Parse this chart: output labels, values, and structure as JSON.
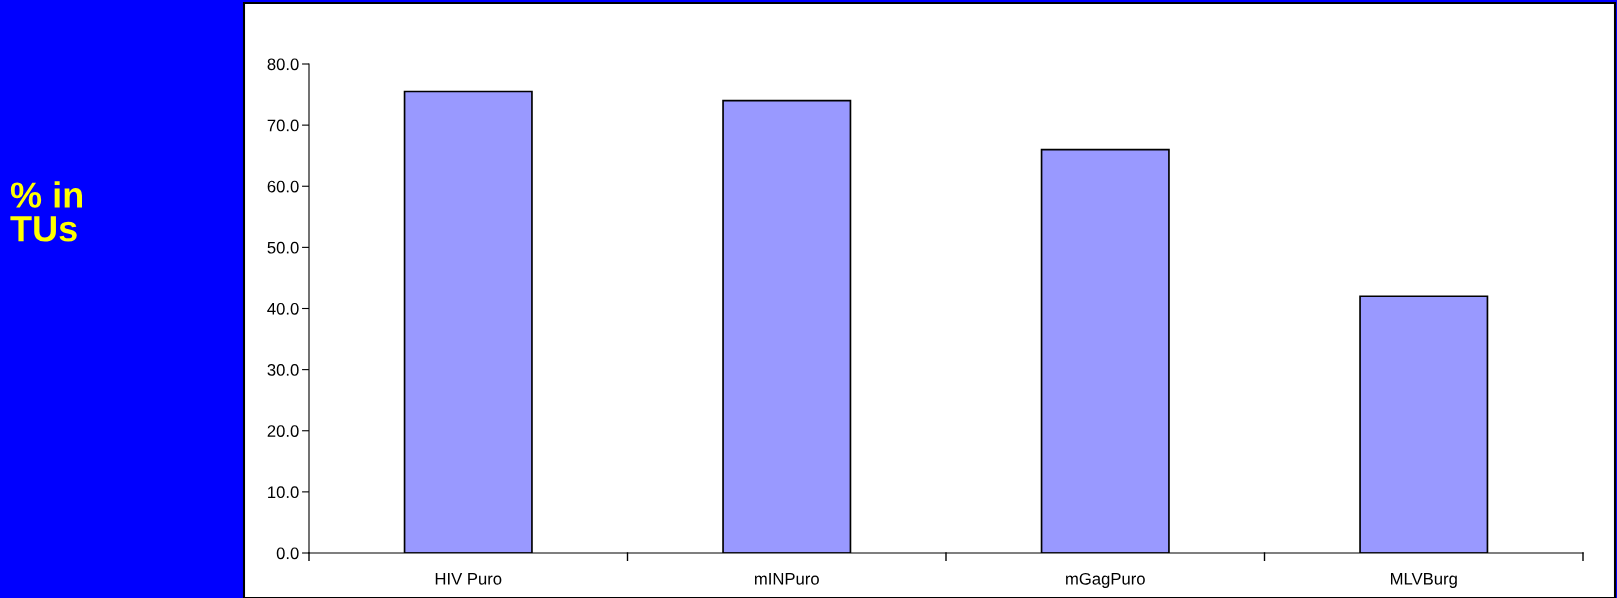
{
  "chart_data": {
    "type": "bar",
    "annotations": [
      "% in\nTUs"
    ],
    "categories": [
      "HIV Puro",
      "mINPuro",
      "mGagPuro",
      "MLVBurg"
    ],
    "values": [
      75.5,
      74.0,
      66.0,
      42.0
    ],
    "color": "#9999ff",
    "ylim": [
      0,
      80
    ],
    "yticks": [
      {
        "value": 0,
        "label": "0.0"
      },
      {
        "value": 10,
        "label": "10.0"
      },
      {
        "value": 20,
        "label": "20.0"
      },
      {
        "value": 30,
        "label": "30.0"
      },
      {
        "value": 40,
        "label": "40.0"
      },
      {
        "value": 50,
        "label": "50.0"
      },
      {
        "value": 60,
        "label": "60.0"
      },
      {
        "value": 70,
        "label": "70.0"
      },
      {
        "value": 80,
        "label": "80.0"
      }
    ],
    "grid": false,
    "legend": false
  }
}
